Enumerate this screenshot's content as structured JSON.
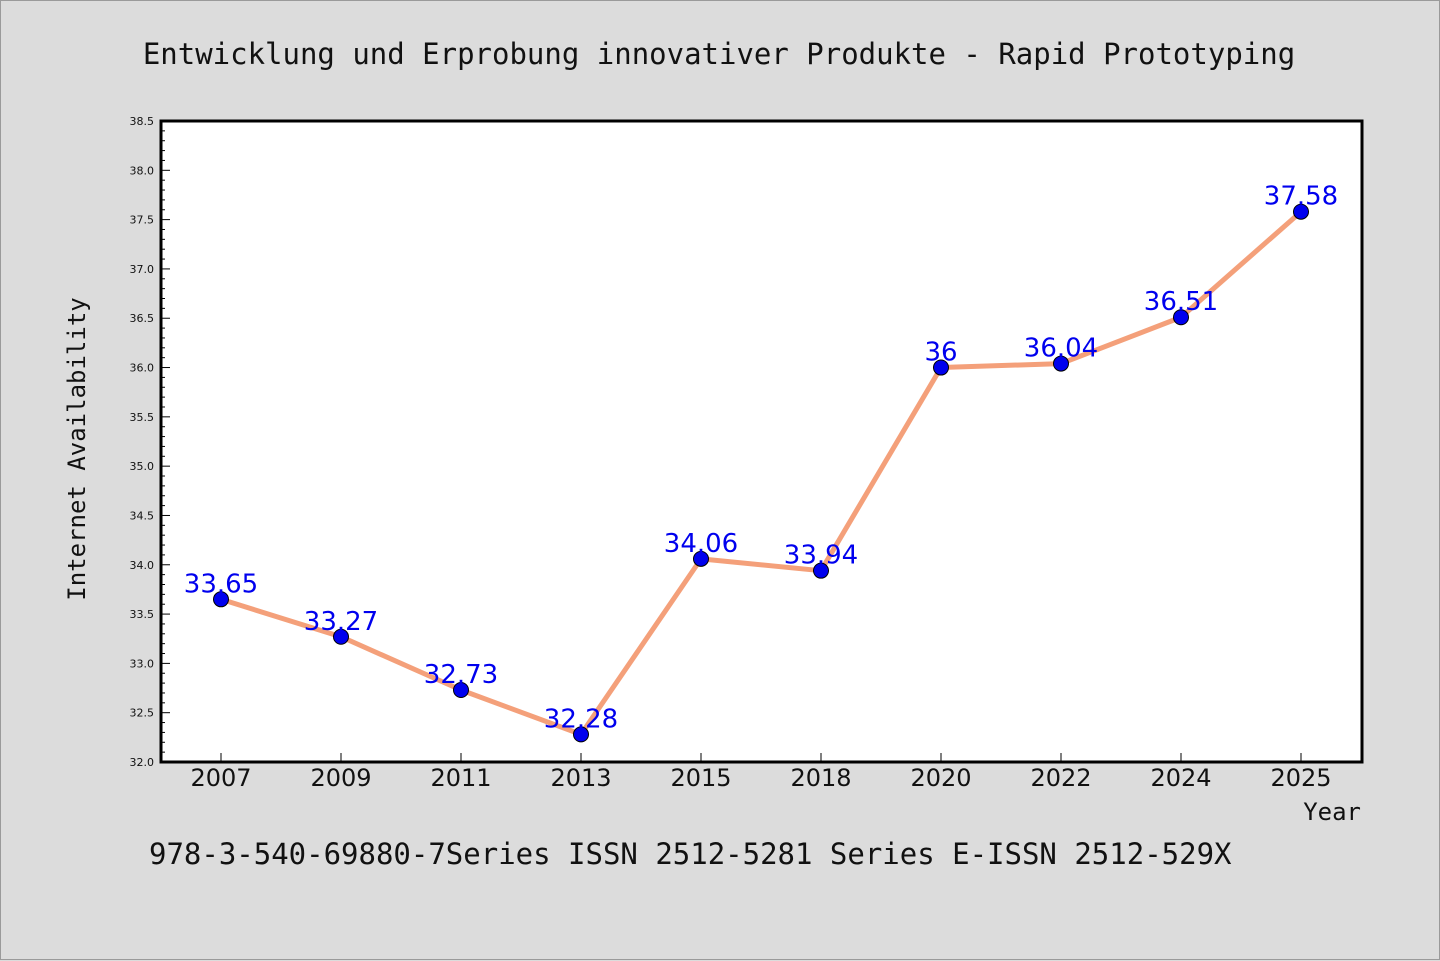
{
  "chart_data": {
    "type": "line",
    "title": "Entwicklung und Erprobung innovativer Produkte - Rapid Prototyping",
    "xlabel": "Year",
    "ylabel": "Internet Availability",
    "footer": "978-3-540-69880-7Series ISSN 2512-5281 Series E-ISSN 2512-529X",
    "categories": [
      "2007",
      "2009",
      "2011",
      "2013",
      "2015",
      "2018",
      "2020",
      "2022",
      "2024",
      "2025"
    ],
    "series": [
      {
        "values": [
          33.65,
          33.27,
          32.73,
          32.28,
          34.06,
          33.94,
          36,
          36.04,
          36.51,
          37.58
        ],
        "labels": [
          "33.65",
          "33.27",
          "32.73",
          "32.28",
          "34.06",
          "33.94",
          "36",
          "36.04",
          "36.51",
          "37.58"
        ],
        "line_color": "#f4a07a",
        "marker_color": "#0000ee"
      }
    ],
    "ylim": [
      32.0,
      38.5
    ],
    "yticks": [
      "32.0",
      "32.5",
      "33.0",
      "33.5",
      "34.0",
      "34.5",
      "35.0",
      "35.5",
      "36.0",
      "36.5",
      "37.0",
      "37.5",
      "38.0",
      "38.5"
    ],
    "grid": false,
    "legend": "none"
  }
}
